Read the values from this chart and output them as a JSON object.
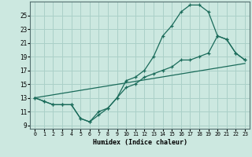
{
  "xlabel": "Humidex (Indice chaleur)",
  "bg_color": "#cce8e0",
  "grid_color": "#aad0c8",
  "line_color": "#1a6b5a",
  "xlim": [
    -0.5,
    23.5
  ],
  "ylim": [
    8.5,
    27
  ],
  "xticks": [
    0,
    1,
    2,
    3,
    4,
    5,
    6,
    7,
    8,
    9,
    10,
    11,
    12,
    13,
    14,
    15,
    16,
    17,
    18,
    19,
    20,
    21,
    22,
    23
  ],
  "yticks": [
    9,
    11,
    13,
    15,
    17,
    19,
    21,
    23,
    25
  ],
  "line1_x": [
    0,
    1,
    2,
    3,
    4,
    5,
    6,
    7,
    8,
    9,
    10,
    11,
    12,
    13,
    14,
    15,
    16,
    17,
    18,
    19,
    20,
    21,
    22,
    23
  ],
  "line1_y": [
    13,
    12.5,
    12,
    12,
    12,
    10,
    9.5,
    11,
    11.5,
    13,
    15.5,
    16,
    17,
    19,
    22,
    23.5,
    25.5,
    26.5,
    26.5,
    25.5,
    22,
    21.5,
    19.5,
    18.5
  ],
  "line2_x": [
    0,
    1,
    2,
    3,
    4,
    5,
    6,
    7,
    8,
    9,
    10,
    11,
    12,
    13,
    14,
    15,
    16,
    17,
    18,
    19,
    20,
    21,
    22,
    23
  ],
  "line2_y": [
    13,
    12.5,
    12,
    12,
    12,
    10,
    9.5,
    10.5,
    11.5,
    13,
    14.5,
    15,
    16,
    16.5,
    17,
    17.5,
    18.5,
    18.5,
    19,
    19.5,
    22,
    21.5,
    19.5,
    18.5
  ],
  "line3_x": [
    0,
    23
  ],
  "line3_y": [
    13,
    18
  ]
}
